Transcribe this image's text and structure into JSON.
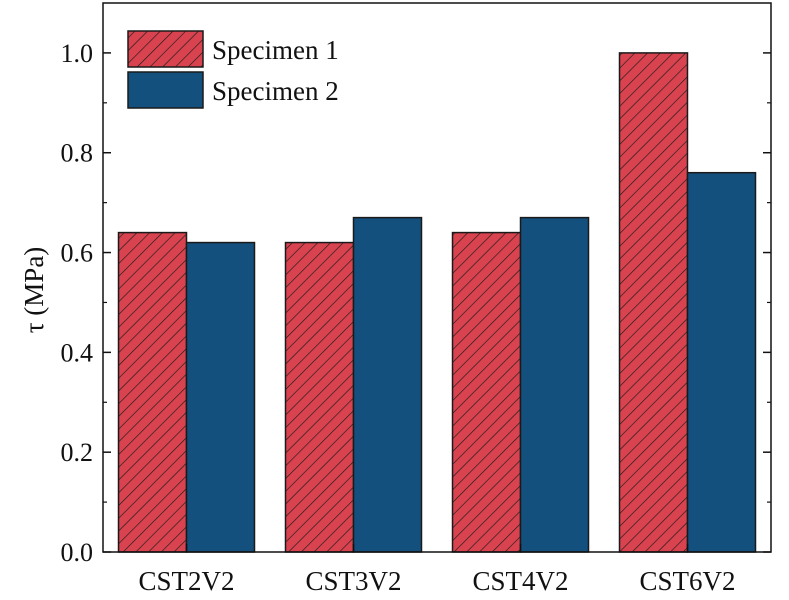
{
  "chart_data": {
    "type": "bar",
    "title": "",
    "xlabel": "",
    "ylabel": "τ (MPa)",
    "categories": [
      "CST2V2",
      "CST3V2",
      "CST4V2",
      "CST6V2"
    ],
    "series": [
      {
        "name": "Specimen 1",
        "values": [
          0.64,
          0.62,
          0.64,
          1.0
        ],
        "color": "#d9434f",
        "pattern": "hatched"
      },
      {
        "name": "Specimen 2",
        "values": [
          0.62,
          0.67,
          0.67,
          0.76
        ],
        "color": "#13507e",
        "pattern": "solid"
      }
    ],
    "ylim": [
      0,
      1.1
    ],
    "yticks": [
      0.0,
      0.2,
      0.4,
      0.6,
      0.8,
      1.0
    ],
    "ytick_labels": [
      "0.0",
      "0.2",
      "0.4",
      "0.6",
      "0.8",
      "1.0"
    ],
    "grid": false,
    "legend_position": "top-left"
  }
}
